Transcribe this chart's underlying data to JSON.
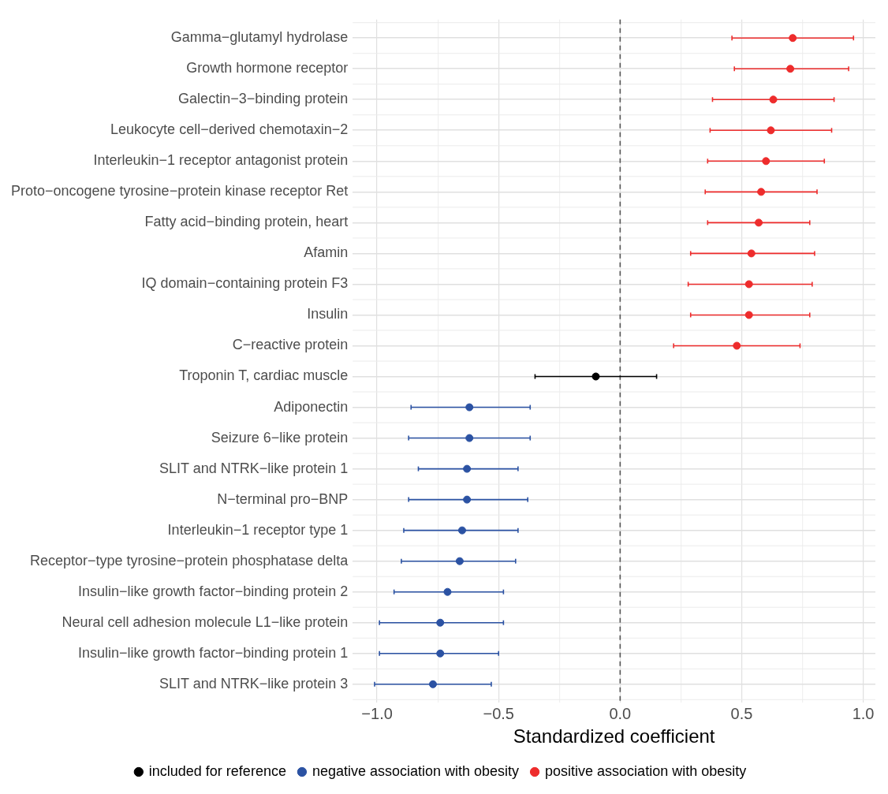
{
  "chart_data": {
    "type": "scatter",
    "orientation": "horizontal",
    "xlabel": "Standardized coefficient",
    "categories": [
      "Gamma−glutamyl hydrolase",
      "Growth hormone receptor",
      "Galectin−3−binding protein",
      "Leukocyte cell−derived chemotaxin−2",
      "Interleukin−1 receptor antagonist protein",
      "Proto−oncogene tyrosine−protein kinase receptor Ret",
      "Fatty acid−binding protein, heart",
      "Afamin",
      "IQ domain−containing protein F3",
      "Insulin",
      "C−reactive protein",
      "Troponin T, cardiac muscle",
      "Adiponectin",
      "Seizure 6−like protein",
      "SLIT and NTRK−like protein 1",
      "N−terminal pro−BNP",
      "Interleukin−1 receptor type 1",
      "Receptor−type tyrosine−protein phosphatase delta",
      "Insulin−like growth factor−binding protein 2",
      "Neural cell adhesion molecule L1−like protein",
      "Insulin−like growth factor−binding protein 1",
      "SLIT and NTRK−like protein 3"
    ],
    "series": [
      {
        "name": "included for reference",
        "color": "#000000",
        "values": [
          null,
          null,
          null,
          null,
          null,
          null,
          null,
          null,
          null,
          null,
          null,
          -0.1,
          null,
          null,
          null,
          null,
          null,
          null,
          null,
          null,
          null,
          null
        ],
        "errors": [
          null,
          null,
          null,
          null,
          null,
          null,
          null,
          null,
          null,
          null,
          null,
          [
            -0.35,
            0.15
          ],
          null,
          null,
          null,
          null,
          null,
          null,
          null,
          null,
          null,
          null
        ]
      },
      {
        "name": "negative association with obesity",
        "color": "#2b52a3",
        "values": [
          null,
          null,
          null,
          null,
          null,
          null,
          null,
          null,
          null,
          null,
          null,
          null,
          -0.62,
          -0.62,
          -0.63,
          -0.63,
          -0.65,
          -0.66,
          -0.71,
          -0.74,
          -0.74,
          -0.77
        ],
        "errors": [
          null,
          null,
          null,
          null,
          null,
          null,
          null,
          null,
          null,
          null,
          null,
          null,
          [
            -0.86,
            -0.37
          ],
          [
            -0.87,
            -0.37
          ],
          [
            -0.83,
            -0.42
          ],
          [
            -0.87,
            -0.38
          ],
          [
            -0.89,
            -0.42
          ],
          [
            -0.9,
            -0.43
          ],
          [
            -0.93,
            -0.48
          ],
          [
            -0.99,
            -0.48
          ],
          [
            -0.99,
            -0.5
          ],
          [
            -1.01,
            -0.53
          ]
        ]
      },
      {
        "name": "positive association with obesity",
        "color": "#ee2c2c",
        "values": [
          0.71,
          0.7,
          0.63,
          0.62,
          0.6,
          0.58,
          0.57,
          0.54,
          0.53,
          0.53,
          0.48,
          null,
          null,
          null,
          null,
          null,
          null,
          null,
          null,
          null,
          null,
          null
        ],
        "errors": [
          [
            0.46,
            0.96
          ],
          [
            0.47,
            0.94
          ],
          [
            0.38,
            0.88
          ],
          [
            0.37,
            0.87
          ],
          [
            0.36,
            0.84
          ],
          [
            0.35,
            0.81
          ],
          [
            0.36,
            0.78
          ],
          [
            0.29,
            0.8
          ],
          [
            0.28,
            0.79
          ],
          [
            0.29,
            0.78
          ],
          [
            0.22,
            0.74
          ],
          null,
          null,
          null,
          null,
          null,
          null,
          null,
          null,
          null,
          null,
          null
        ]
      }
    ],
    "xlim": [
      -1.1,
      1.05
    ],
    "xticks": [
      {
        "value": -1,
        "label": "−1.0"
      },
      {
        "value": -0.75,
        "label": null
      },
      {
        "value": -0.5,
        "label": "−0.5"
      },
      {
        "value": -0.25,
        "label": null
      },
      {
        "value": 0,
        "label": "0.0"
      },
      {
        "value": 0.25,
        "label": null
      },
      {
        "value": 0.5,
        "label": "0.5"
      },
      {
        "value": 0.75,
        "label": null
      },
      {
        "value": 1,
        "label": "1.0"
      }
    ],
    "ref_lines": [
      {
        "axis": "x",
        "value": 0,
        "line_style": "dashed",
        "color": "#555555"
      }
    ],
    "grid": true,
    "legend": "bottom",
    "marker": "circle"
  }
}
